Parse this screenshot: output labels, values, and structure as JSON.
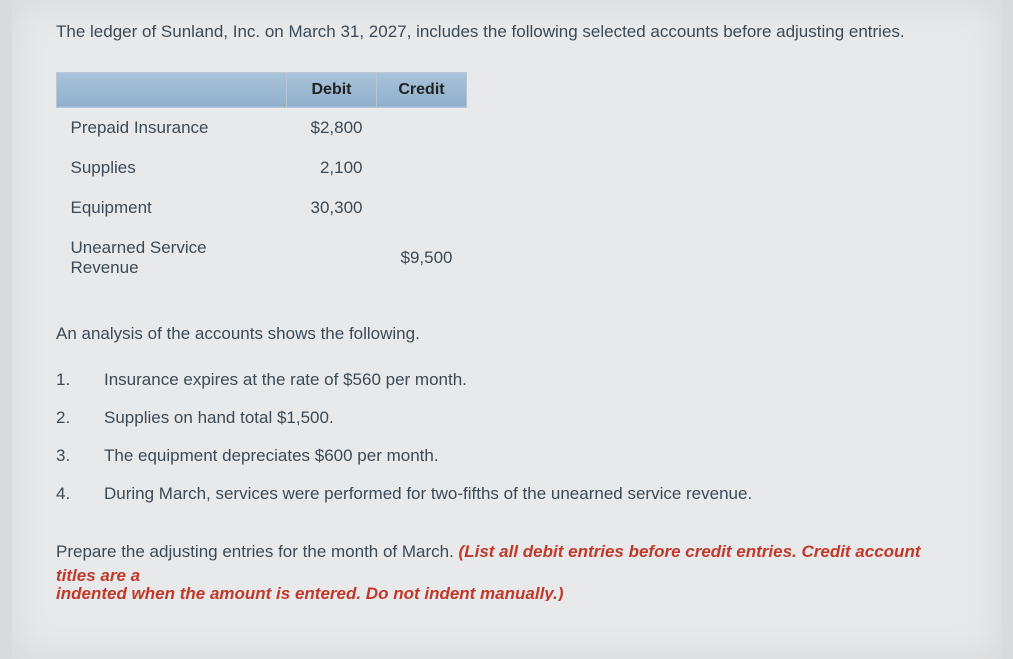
{
  "intro": "The ledger of Sunland, Inc. on March 31, 2027, includes the following selected accounts before adjusting entries.",
  "table": {
    "headers": {
      "debit": "Debit",
      "credit": "Credit"
    },
    "rows": [
      {
        "label": "Prepaid Insurance",
        "debit": "$2,800",
        "credit": ""
      },
      {
        "label": "Supplies",
        "debit": "2,100",
        "credit": ""
      },
      {
        "label": "Equipment",
        "debit": "30,300",
        "credit": ""
      },
      {
        "label": "Unearned Service Revenue",
        "debit": "",
        "credit": "$9,500"
      }
    ]
  },
  "analysis_intro": "An analysis of the accounts shows the following.",
  "analysis": [
    {
      "n": "1.",
      "text": "Insurance expires at the rate of $560 per month."
    },
    {
      "n": "2.",
      "text": "Supplies on hand total $1,500."
    },
    {
      "n": "3.",
      "text": "The equipment depreciates $600 per month."
    },
    {
      "n": "4.",
      "text": "During March, services were performed for two-fifths of the unearned service revenue."
    }
  ],
  "instruction_plain": "Prepare the adjusting entries for the month of March. ",
  "instruction_red1": "(List all debit entries before credit entries. Credit account titles are a",
  "instruction_red2": "indented when the amount is entered. Do not indent manually.)",
  "colors": {
    "page_bg": "#e8e9ea",
    "text": "#3c4a56",
    "header_bg_top": "#a9c3da",
    "header_bg_bottom": "#8fafcb",
    "red": "#c0392b"
  }
}
